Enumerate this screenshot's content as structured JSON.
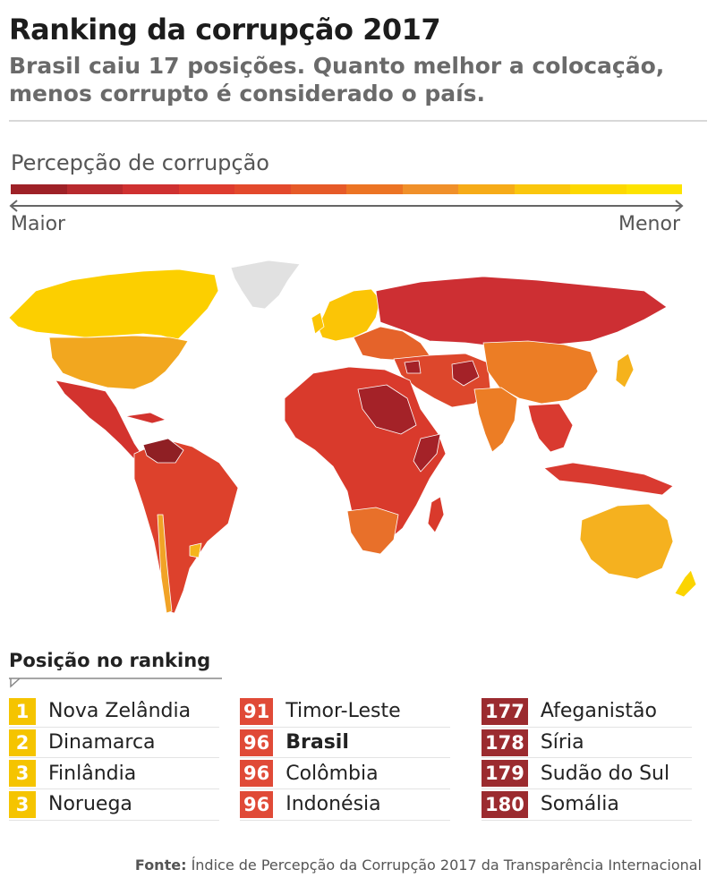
{
  "title": "Ranking da corrupção 2017",
  "subtitle": "Brasil caiu 17 posições. Quanto melhor a colocação, menos corrupto é considerado o país.",
  "scale": {
    "label": "Percepção de corrupção",
    "left_label": "Maior",
    "right_label": "Menor",
    "colors": [
      "#9e2127",
      "#b82a2e",
      "#cf3131",
      "#de3c2f",
      "#e3492c",
      "#e65a28",
      "#ec7424",
      "#f0902a",
      "#f6ab18",
      "#fac60d",
      "#fdd800",
      "#fde300"
    ]
  },
  "map": {
    "region_colors": {
      "north_america": "#f2a71f",
      "canada": "#fccf00",
      "greenland": "#e1e1e1",
      "central_america": "#d3332e",
      "south_america": "#dd412c",
      "venezuela": "#8f1f24",
      "chile": "#f1a326",
      "uruguay": "#f5b51b",
      "europe_west": "#fbc506",
      "europe_east": "#e5632a",
      "russia": "#cd2f33",
      "africa": "#d93a2c",
      "africa_dark": "#a42228",
      "africa_south": "#e8702a",
      "middle_east": "#dd472c",
      "china": "#ec7d25",
      "india": "#ec7d25",
      "southeast_asia": "#d93a30",
      "japan": "#f5b21c",
      "australia": "#f5b11f",
      "new_zealand": "#fbd400"
    }
  },
  "legend": {
    "title": "Posição no ranking",
    "columns": [
      {
        "color": "#f5c400",
        "items": [
          {
            "rank": "1",
            "country": "Nova Zelândia"
          },
          {
            "rank": "2",
            "country": "Dinamarca"
          },
          {
            "rank": "3",
            "country": "Finlândia"
          },
          {
            "rank": "3",
            "country": "Noruega"
          }
        ]
      },
      {
        "color": "#e04a37",
        "items": [
          {
            "rank": "91",
            "country": "Timor-Leste"
          },
          {
            "rank": "96",
            "country": "Brasil",
            "bold": true
          },
          {
            "rank": "96",
            "country": "Colômbia"
          },
          {
            "rank": "96",
            "country": "Indonésia"
          }
        ]
      },
      {
        "color": "#9b2b2f",
        "items": [
          {
            "rank": "177",
            "country": "Afeganistão"
          },
          {
            "rank": "178",
            "country": "Síria"
          },
          {
            "rank": "179",
            "country": "Sudão do Sul"
          },
          {
            "rank": "180",
            "country": "Somália"
          }
        ]
      }
    ]
  },
  "source": {
    "label": "Fonte:",
    "text": "Índice de Percepção da Corrupção 2017 da Transparência Internacional"
  }
}
